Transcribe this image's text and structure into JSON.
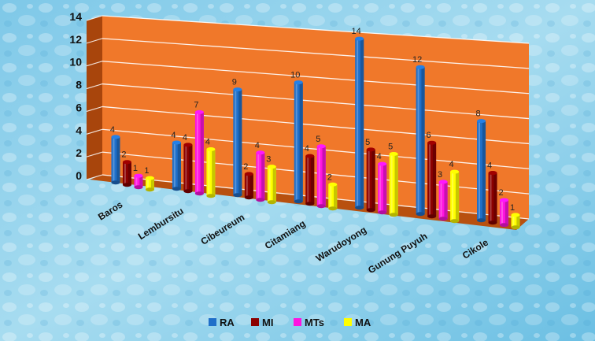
{
  "chart_data": {
    "type": "bar",
    "categories": [
      "Baros",
      "Lembursitu",
      "Cibeureum",
      "Citamiang",
      "Warudoyong",
      "Gunung Puyuh",
      "Cikole"
    ],
    "series": [
      {
        "name": "RA",
        "values": [
          4,
          4,
          9,
          10,
          14,
          12,
          8
        ]
      },
      {
        "name": "MI",
        "values": [
          2,
          4,
          2,
          4,
          5,
          6,
          4
        ]
      },
      {
        "name": "MTs",
        "values": [
          1,
          7,
          4,
          5,
          4,
          3,
          2
        ]
      },
      {
        "name": "MA",
        "values": [
          1,
          4,
          3,
          2,
          5,
          4,
          1
        ]
      }
    ],
    "yticks": [
      "0",
      "2",
      "4",
      "6",
      "8",
      "10",
      "12",
      "14"
    ],
    "ylim": [
      0,
      14
    ],
    "legend_position": "bottom",
    "colors": {
      "RA": "#1f6fc9",
      "MI": "#8b0000",
      "MTs": "#ff14e0",
      "MA": "#ffff00",
      "wall": "#f0782a",
      "side_wall": "#a8450c",
      "floor": "#b8500f"
    }
  }
}
